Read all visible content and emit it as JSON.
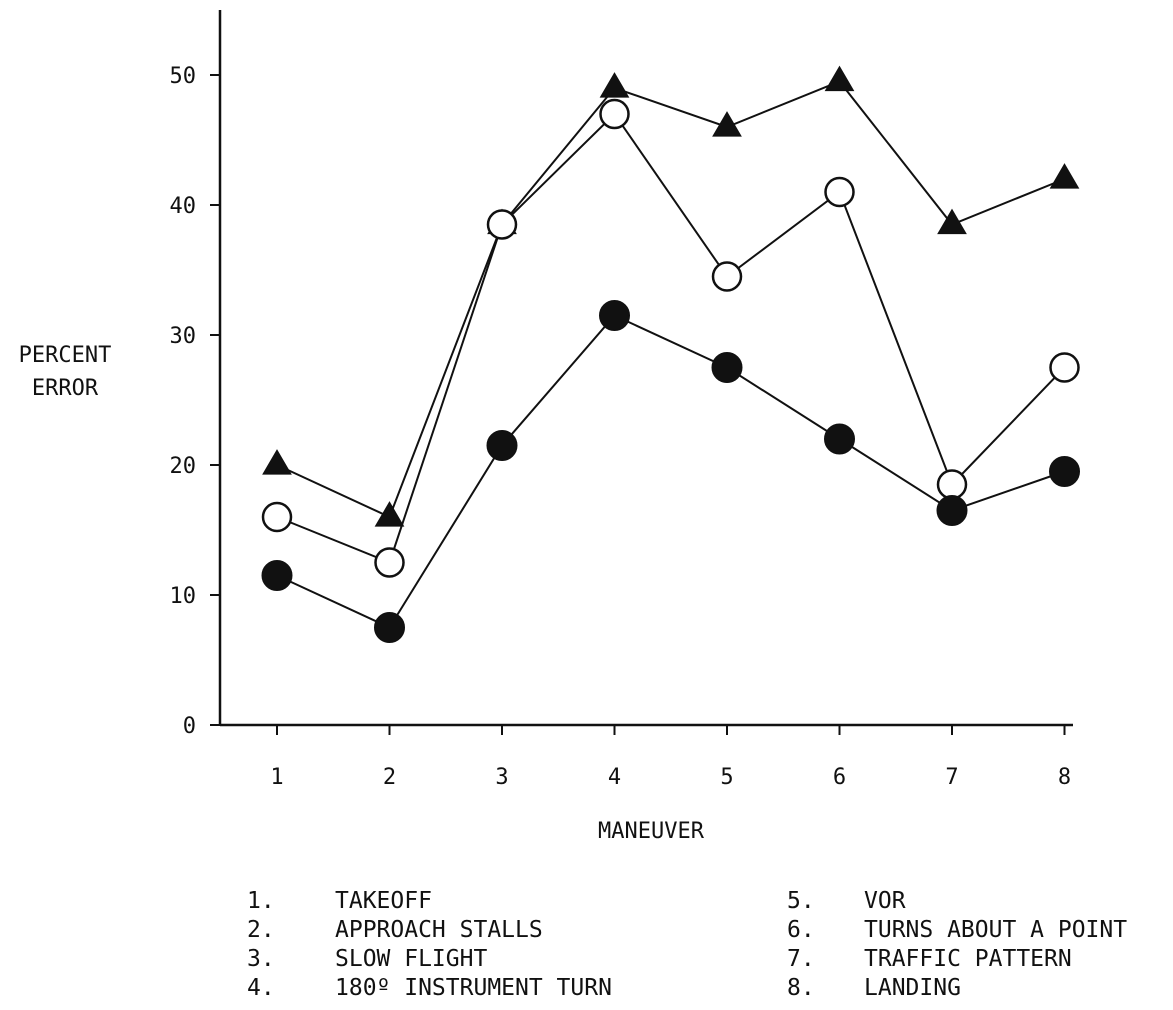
{
  "chart_data": {
    "type": "line",
    "title": "",
    "xlabel": "MANEUVER",
    "ylabel_lines": [
      "PERCENT",
      "ERROR"
    ],
    "x": [
      1,
      2,
      3,
      4,
      5,
      6,
      7,
      8
    ],
    "xlim": [
      0.5,
      8.6
    ],
    "ylim": [
      0,
      55
    ],
    "yticks": [
      0,
      10,
      20,
      30,
      40,
      50
    ],
    "xticks": [
      1,
      2,
      3,
      4,
      5,
      6,
      7,
      8
    ],
    "grid": false,
    "series": [
      {
        "marker": "filled-triangle",
        "values": [
          20,
          16,
          38.5,
          49,
          46,
          49.5,
          38.5,
          42
        ]
      },
      {
        "marker": "open-circle",
        "values": [
          16,
          12.5,
          38.5,
          47,
          34.5,
          41,
          18.5,
          27.5
        ]
      },
      {
        "marker": "filled-circle",
        "values": [
          11.5,
          7.5,
          21.5,
          31.5,
          27.5,
          22,
          16.5,
          19.5
        ]
      }
    ],
    "legend": {
      "left": [
        {
          "num": "1.",
          "text": "TAKEOFF"
        },
        {
          "num": "2.",
          "text": "APPROACH STALLS"
        },
        {
          "num": "3.",
          "text": "SLOW FLIGHT"
        },
        {
          "num": "4.",
          "text": "180º INSTRUMENT TURN"
        }
      ],
      "right": [
        {
          "num": "5.",
          "text": "VOR"
        },
        {
          "num": "6.",
          "text": "TURNS ABOUT A POINT"
        },
        {
          "num": "7.",
          "text": "TRAFFIC PATTERN"
        },
        {
          "num": "8.",
          "text": "LANDING"
        }
      ]
    },
    "colors": {
      "ink": "#111111",
      "background": "#ffffff"
    }
  }
}
